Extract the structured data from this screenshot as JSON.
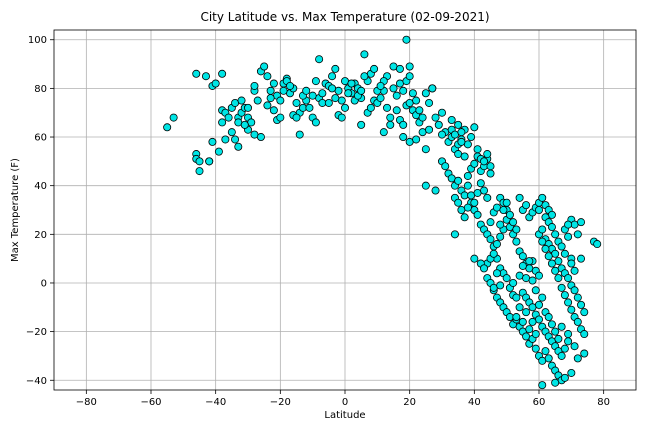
{
  "chart_data": {
    "type": "scatter",
    "title": "City Latitude vs. Max Temperature (02-09-2021)",
    "xlabel": "Latitude",
    "ylabel": "Max Temperature (F)",
    "xlim": [
      -90,
      90
    ],
    "ylim": [
      -44,
      104
    ],
    "xticks": [
      -80,
      -60,
      -40,
      -20,
      0,
      20,
      40,
      60,
      80
    ],
    "yticks": [
      -40,
      -20,
      0,
      20,
      40,
      60,
      80,
      100
    ],
    "grid": true,
    "marker_color": "#00e5e5",
    "marker_edge_color": "#000000",
    "points": [
      [
        -55,
        64
      ],
      [
        -53,
        68
      ],
      [
        -46,
        86
      ],
      [
        -43,
        85
      ],
      [
        -41,
        81
      ],
      [
        -40,
        82
      ],
      [
        -38,
        86
      ],
      [
        -46,
        53
      ],
      [
        -46,
        51
      ],
      [
        -45,
        50
      ],
      [
        -45,
        46
      ],
      [
        -42,
        50
      ],
      [
        -42,
        50
      ],
      [
        -41,
        58
      ],
      [
        -38,
        71
      ],
      [
        -37,
        70
      ],
      [
        -36,
        68
      ],
      [
        -35,
        72
      ],
      [
        -34,
        74
      ],
      [
        -33,
        68
      ],
      [
        -33,
        66
      ],
      [
        -32,
        70
      ],
      [
        -32,
        75
      ],
      [
        -31,
        72
      ],
      [
        -30,
        68
      ],
      [
        -30,
        72
      ],
      [
        -29,
        66
      ],
      [
        -28,
        79
      ],
      [
        -28,
        81
      ],
      [
        -27,
        75
      ],
      [
        -26,
        87
      ],
      [
        -25,
        89
      ],
      [
        -24,
        85
      ],
      [
        -23,
        79
      ],
      [
        -22,
        82
      ],
      [
        -21,
        77
      ],
      [
        -20,
        75
      ],
      [
        -19,
        82
      ],
      [
        -18,
        84
      ],
      [
        -17,
        78
      ],
      [
        -16,
        80
      ],
      [
        -15,
        74
      ],
      [
        -14,
        70
      ],
      [
        -13,
        72
      ],
      [
        -12,
        75
      ],
      [
        -30,
        63
      ],
      [
        -28,
        61
      ],
      [
        -26,
        60
      ],
      [
        -33,
        56
      ],
      [
        -34,
        59
      ],
      [
        -37,
        59
      ],
      [
        -35,
        62
      ],
      [
        -38,
        66
      ],
      [
        -39,
        54
      ],
      [
        -31,
        65
      ],
      [
        -24,
        73
      ],
      [
        -23,
        76
      ],
      [
        -22,
        71
      ],
      [
        -21,
        67
      ],
      [
        -20,
        68
      ],
      [
        -19,
        79
      ],
      [
        -18,
        83
      ],
      [
        -17,
        81
      ],
      [
        -16,
        69
      ],
      [
        -15,
        68
      ],
      [
        -14,
        61
      ],
      [
        -13,
        77
      ],
      [
        -12,
        79
      ],
      [
        -11,
        72
      ],
      [
        -10,
        68
      ],
      [
        -9,
        66
      ],
      [
        -8,
        76
      ],
      [
        -7,
        78
      ],
      [
        -6,
        82
      ],
      [
        -5,
        81
      ],
      [
        -4,
        85
      ],
      [
        -3,
        88
      ],
      [
        -2,
        79
      ],
      [
        -1,
        75
      ],
      [
        0,
        83
      ],
      [
        1,
        80
      ],
      [
        2,
        78
      ],
      [
        3,
        82
      ],
      [
        4,
        80
      ],
      [
        5,
        76
      ],
      [
        6,
        94
      ],
      [
        7,
        83
      ],
      [
        8,
        86
      ],
      [
        9,
        88
      ],
      [
        -8,
        92
      ],
      [
        -10,
        77
      ],
      [
        -9,
        83
      ],
      [
        -7,
        74
      ],
      [
        -5,
        74
      ],
      [
        -4,
        80
      ],
      [
        -3,
        76
      ],
      [
        -2,
        69
      ],
      [
        -1,
        68
      ],
      [
        0,
        72
      ],
      [
        1,
        78
      ],
      [
        2,
        82
      ],
      [
        3,
        75
      ],
      [
        4,
        77
      ],
      [
        5,
        79
      ],
      [
        6,
        85
      ],
      [
        7,
        70
      ],
      [
        8,
        72
      ],
      [
        9,
        75
      ],
      [
        10,
        74
      ],
      [
        11,
        76
      ],
      [
        12,
        79
      ],
      [
        13,
        72
      ],
      [
        14,
        68
      ],
      [
        15,
        80
      ],
      [
        16,
        77
      ],
      [
        17,
        82
      ],
      [
        18,
        79
      ],
      [
        19,
        83
      ],
      [
        20,
        85
      ],
      [
        21,
        71
      ],
      [
        22,
        69
      ],
      [
        23,
        66
      ],
      [
        24,
        62
      ],
      [
        25,
        78
      ],
      [
        26,
        74
      ],
      [
        27,
        80
      ],
      [
        15,
        89
      ],
      [
        17,
        88
      ],
      [
        19,
        100
      ],
      [
        20,
        89
      ],
      [
        13,
        85
      ],
      [
        12,
        83
      ],
      [
        10,
        79
      ],
      [
        11,
        81
      ],
      [
        16,
        71
      ],
      [
        17,
        67
      ],
      [
        18,
        65
      ],
      [
        19,
        73
      ],
      [
        20,
        74
      ],
      [
        21,
        78
      ],
      [
        22,
        75
      ],
      [
        23,
        71
      ],
      [
        24,
        68
      ],
      [
        14,
        65
      ],
      [
        12,
        62
      ],
      [
        5,
        65
      ],
      [
        18,
        60
      ],
      [
        20,
        58
      ],
      [
        22,
        59
      ],
      [
        25,
        55
      ],
      [
        26,
        63
      ],
      [
        27,
        80
      ],
      [
        28,
        68
      ],
      [
        29,
        65
      ],
      [
        30,
        70
      ],
      [
        31,
        62
      ],
      [
        32,
        58
      ],
      [
        33,
        60
      ],
      [
        34,
        55
      ],
      [
        35,
        53
      ],
      [
        25,
        40
      ],
      [
        28,
        38
      ],
      [
        30,
        50
      ],
      [
        31,
        48
      ],
      [
        32,
        45
      ],
      [
        33,
        43
      ],
      [
        34,
        40
      ],
      [
        35,
        42
      ],
      [
        36,
        38
      ],
      [
        37,
        36
      ],
      [
        38,
        44
      ],
      [
        39,
        47
      ],
      [
        40,
        49
      ],
      [
        41,
        52
      ],
      [
        42,
        46
      ],
      [
        43,
        48
      ],
      [
        44,
        51
      ],
      [
        45,
        45
      ],
      [
        30,
        61
      ],
      [
        33,
        63
      ],
      [
        35,
        57
      ],
      [
        36,
        59
      ],
      [
        37,
        63
      ],
      [
        38,
        57
      ],
      [
        39,
        60
      ],
      [
        40,
        64
      ],
      [
        41,
        55
      ],
      [
        42,
        51
      ],
      [
        43,
        50
      ],
      [
        44,
        53
      ],
      [
        45,
        48
      ],
      [
        33,
        67
      ],
      [
        34,
        61
      ],
      [
        35,
        65
      ],
      [
        36,
        62
      ],
      [
        36,
        58
      ],
      [
        37,
        52
      ],
      [
        38,
        40
      ],
      [
        39,
        33
      ],
      [
        40,
        30
      ],
      [
        41,
        28
      ],
      [
        42,
        24
      ],
      [
        43,
        22
      ],
      [
        44,
        20
      ],
      [
        45,
        18
      ],
      [
        46,
        15
      ],
      [
        47,
        10
      ],
      [
        48,
        6
      ],
      [
        49,
        4
      ],
      [
        50,
        2
      ],
      [
        51,
        -2
      ],
      [
        52,
        -5
      ],
      [
        53,
        -6
      ],
      [
        34,
        35
      ],
      [
        35,
        33
      ],
      [
        36,
        30
      ],
      [
        37,
        27
      ],
      [
        38,
        31
      ],
      [
        39,
        36
      ],
      [
        40,
        33
      ],
      [
        41,
        37
      ],
      [
        42,
        41
      ],
      [
        43,
        38
      ],
      [
        44,
        35
      ],
      [
        45,
        25
      ],
      [
        46,
        29
      ],
      [
        47,
        31
      ],
      [
        48,
        35
      ],
      [
        49,
        33
      ],
      [
        50,
        30
      ],
      [
        34,
        20
      ],
      [
        44,
        8
      ],
      [
        45,
        10
      ],
      [
        46,
        12
      ],
      [
        47,
        16
      ],
      [
        48,
        19
      ],
      [
        49,
        22
      ],
      [
        50,
        26
      ],
      [
        51,
        23
      ],
      [
        52,
        20
      ],
      [
        53,
        17
      ],
      [
        54,
        13
      ],
      [
        55,
        11
      ],
      [
        56,
        8
      ],
      [
        57,
        6
      ],
      [
        58,
        9
      ],
      [
        59,
        5
      ],
      [
        60,
        3
      ],
      [
        46,
        -3
      ],
      [
        47,
        -6
      ],
      [
        48,
        -8
      ],
      [
        49,
        -10
      ],
      [
        50,
        -12
      ],
      [
        51,
        -14
      ],
      [
        52,
        -17
      ],
      [
        53,
        -15
      ],
      [
        54,
        -18
      ],
      [
        55,
        -20
      ],
      [
        56,
        -22
      ],
      [
        57,
        -25
      ],
      [
        58,
        -23
      ],
      [
        59,
        -27
      ],
      [
        60,
        -30
      ],
      [
        61,
        -32
      ],
      [
        62,
        -28
      ],
      [
        63,
        -31
      ],
      [
        64,
        -34
      ],
      [
        65,
        -36
      ],
      [
        66,
        -38
      ],
      [
        67,
        -40
      ],
      [
        68,
        -39
      ],
      [
        61,
        -42
      ],
      [
        65,
        -41
      ],
      [
        70,
        -37
      ],
      [
        48,
        24
      ],
      [
        49,
        30
      ],
      [
        50,
        33
      ],
      [
        51,
        28
      ],
      [
        52,
        25
      ],
      [
        53,
        22
      ],
      [
        54,
        35
      ],
      [
        55,
        30
      ],
      [
        56,
        32
      ],
      [
        57,
        27
      ],
      [
        58,
        29
      ],
      [
        59,
        31
      ],
      [
        60,
        33
      ],
      [
        61,
        35
      ],
      [
        62,
        32
      ],
      [
        63,
        30
      ],
      [
        64,
        28
      ],
      [
        62,
        18
      ],
      [
        63,
        16
      ],
      [
        64,
        14
      ],
      [
        65,
        12
      ],
      [
        66,
        9
      ],
      [
        67,
        6
      ],
      [
        68,
        4
      ],
      [
        69,
        2
      ],
      [
        70,
        -1
      ],
      [
        71,
        -3
      ],
      [
        72,
        -6
      ],
      [
        73,
        -9
      ],
      [
        74,
        -12
      ],
      [
        60,
        20
      ],
      [
        61,
        17
      ],
      [
        62,
        14
      ],
      [
        63,
        11
      ],
      [
        64,
        8
      ],
      [
        65,
        5
      ],
      [
        66,
        2
      ],
      [
        67,
        -2
      ],
      [
        68,
        -5
      ],
      [
        69,
        -8
      ],
      [
        70,
        -11
      ],
      [
        71,
        -14
      ],
      [
        72,
        -16
      ],
      [
        73,
        -19
      ],
      [
        74,
        -21
      ],
      [
        55,
        -4
      ],
      [
        56,
        -6
      ],
      [
        57,
        -8
      ],
      [
        58,
        -10
      ],
      [
        59,
        -13
      ],
      [
        60,
        -15
      ],
      [
        61,
        -18
      ],
      [
        62,
        -20
      ],
      [
        63,
        -22
      ],
      [
        64,
        -24
      ],
      [
        65,
        -26
      ],
      [
        66,
        -28
      ],
      [
        67,
        -30
      ],
      [
        68,
        -27
      ],
      [
        69,
        -24
      ],
      [
        70,
        26
      ],
      [
        71,
        24
      ],
      [
        72,
        20
      ],
      [
        73,
        25
      ],
      [
        77,
        17
      ],
      [
        78,
        16
      ],
      [
        68,
        22
      ],
      [
        69,
        24
      ],
      [
        70,
        10
      ],
      [
        73,
        10
      ],
      [
        74,
        -29
      ],
      [
        72,
        -31
      ],
      [
        71,
        -26
      ],
      [
        69,
        -21
      ],
      [
        40,
        10
      ],
      [
        42,
        8
      ],
      [
        43,
        6
      ],
      [
        44,
        2
      ],
      [
        45,
        0
      ],
      [
        46,
        -2
      ],
      [
        47,
        4
      ],
      [
        48,
        -1
      ],
      [
        52,
        0
      ],
      [
        54,
        3
      ],
      [
        55,
        7
      ],
      [
        56,
        2
      ],
      [
        57,
        9
      ],
      [
        58,
        1
      ],
      [
        59,
        -3
      ],
      [
        60,
        30
      ],
      [
        61,
        22
      ],
      [
        62,
        27
      ],
      [
        63,
        25
      ],
      [
        64,
        23
      ],
      [
        65,
        20
      ],
      [
        66,
        17
      ],
      [
        67,
        15
      ],
      [
        68,
        12
      ],
      [
        69,
        19
      ],
      [
        70,
        8
      ],
      [
        71,
        5
      ],
      [
        53,
        -14
      ],
      [
        54,
        -10
      ],
      [
        55,
        -16
      ],
      [
        56,
        -12
      ],
      [
        57,
        -19
      ],
      [
        58,
        -16
      ],
      [
        59,
        -21
      ],
      [
        60,
        -9
      ],
      [
        61,
        -6
      ],
      [
        62,
        -12
      ],
      [
        63,
        -14
      ],
      [
        64,
        -17
      ],
      [
        65,
        -20
      ],
      [
        66,
        -23
      ],
      [
        67,
        -18
      ]
    ]
  }
}
